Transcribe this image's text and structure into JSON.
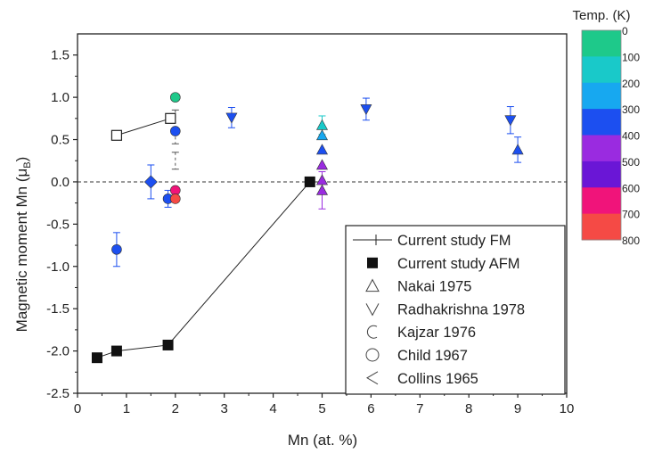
{
  "chart_data": {
    "type": "scatter",
    "xlabel": "Mn (at. %)",
    "ylabel_main": "Magnetic moment Mn (μ",
    "ylabel_sub": "B",
    "ylabel_close": ")",
    "xlim": [
      0,
      10
    ],
    "ylim": [
      -2.5,
      1.75
    ],
    "xticks": [
      0,
      1,
      2,
      3,
      4,
      5,
      6,
      7,
      8,
      9,
      10
    ],
    "yticks": [
      -2.5,
      -2.0,
      -1.5,
      -1.0,
      -0.5,
      0.0,
      0.5,
      1.0,
      1.5
    ],
    "ytick_labels": [
      "-2.5",
      "-2.0",
      "-1.5",
      "-1.0",
      "-0.5",
      "0.0",
      "0.5",
      "1.0",
      "1.5"
    ],
    "reference_line_y": 0,
    "legend_position": "bottom-right",
    "colorbar": {
      "title": "Temp. (K)",
      "ticks": [
        "0",
        "100",
        "200",
        "300",
        "400",
        "500",
        "600",
        "700",
        "800"
      ],
      "colors": [
        "#1ec98a",
        "#19c9c9",
        "#17a8f0",
        "#1c4ff0",
        "#9a2be0",
        "#6a16d6",
        "#f0147a",
        "#f54a45"
      ]
    },
    "series": [
      {
        "name": "Current study FM",
        "marker": "open-square",
        "connected": true,
        "points": [
          {
            "x": 0.8,
            "y": 0.55
          },
          {
            "x": 1.9,
            "y": 0.75
          }
        ]
      },
      {
        "name": "Current study AFM",
        "marker": "filled-square",
        "connected": true,
        "points": [
          {
            "x": 0.4,
            "y": -2.08
          },
          {
            "x": 0.8,
            "y": -2.0
          },
          {
            "x": 1.85,
            "y": -1.93
          },
          {
            "x": 4.75,
            "y": 0.0
          }
        ]
      },
      {
        "name": "Nakai 1975",
        "marker": "triangle-up",
        "points": [
          {
            "x": 5.0,
            "y": 0.67,
            "err": 0.11,
            "color": "#19c9c9"
          },
          {
            "x": 5.0,
            "y": 0.55,
            "color": "#17a8f0"
          },
          {
            "x": 5.0,
            "y": 0.38,
            "color": "#1c4ff0"
          },
          {
            "x": 5.0,
            "y": 0.2,
            "color": "#9a2be0"
          },
          {
            "x": 5.0,
            "y": 0.02,
            "color": "#9a2be0"
          },
          {
            "x": 5.0,
            "y": -0.1,
            "err": 0.22,
            "color": "#9a2be0"
          },
          {
            "x": 9.0,
            "y": 0.38,
            "err": 0.15,
            "color": "#1c4ff0"
          }
        ]
      },
      {
        "name": "Radhakrishna 1978",
        "marker": "triangle-down",
        "points": [
          {
            "x": 3.15,
            "y": 0.76,
            "err": 0.12,
            "color": "#1c4ff0"
          },
          {
            "x": 5.9,
            "y": 0.86,
            "err": 0.13,
            "color": "#1c4ff0"
          },
          {
            "x": 8.85,
            "y": 0.73,
            "err": 0.16,
            "color": "#1c4ff0"
          }
        ]
      },
      {
        "name": "Kajzar 1976",
        "marker": "half-circle",
        "points": [
          {
            "x": 1.85,
            "y": -0.2,
            "err": 0.1,
            "color": "#1c4ff0"
          }
        ]
      },
      {
        "name": "Child 1967",
        "marker": "circle",
        "points": [
          {
            "x": 2.0,
            "y": 1.0,
            "color": "#1ec98a"
          },
          {
            "x": 2.0,
            "y": 0.6,
            "color": "#1c4ff0"
          },
          {
            "x": 2.0,
            "y": -0.1,
            "color": "#f0147a"
          },
          {
            "x": 2.0,
            "y": -0.2,
            "color": "#f54a45"
          },
          {
            "x": 0.8,
            "y": -0.8,
            "err": 0.2,
            "color": "#1c4ff0"
          }
        ]
      },
      {
        "name": "Collins 1965",
        "marker": "diamond",
        "points": [
          {
            "x": 1.5,
            "y": 0.0,
            "err": 0.2,
            "color": "#1c4ff0"
          }
        ]
      }
    ],
    "fm_error_caps": [
      {
        "x": 2.0,
        "y_from": 0.85,
        "y_to": 0.45
      },
      {
        "x": 2.0,
        "y_from": 0.35,
        "y_to": 0.15
      }
    ]
  }
}
